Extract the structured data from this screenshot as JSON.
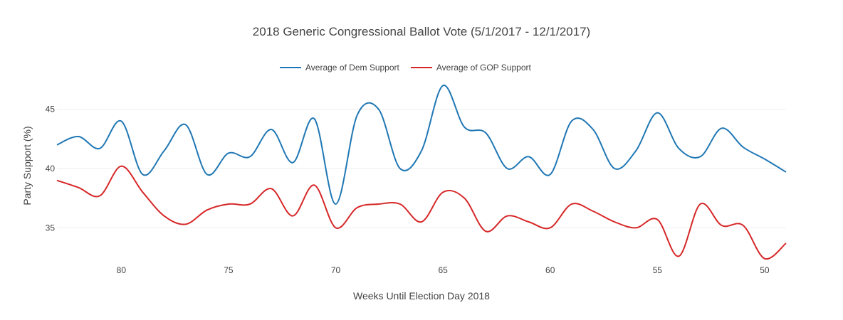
{
  "chart_data": {
    "type": "line",
    "title": "2018 Generic Congressional Ballot Vote (5/1/2017 - 12/1/2017)",
    "xlabel": "Weeks Until Election Day 2018",
    "ylabel": "Party Support (%)",
    "xlim": [
      83,
      49
    ],
    "ylim": [
      32.5,
      47.5
    ],
    "x_ticks": [
      80,
      75,
      70,
      65,
      60,
      55,
      50
    ],
    "y_ticks": [
      35,
      40,
      45
    ],
    "grid": true,
    "legend_position": "top-center",
    "x": [
      83,
      82,
      81,
      80,
      79,
      78,
      77,
      76,
      75,
      74,
      73,
      72,
      71,
      70,
      69,
      68,
      67,
      66,
      65,
      64,
      63,
      62,
      61,
      60,
      59,
      58,
      57,
      56,
      55,
      54,
      53,
      52,
      51,
      50,
      49
    ],
    "series": [
      {
        "name": "Average of Dem Support",
        "color": "#1f77b4",
        "values": [
          42,
          42.7,
          41.7,
          44,
          39.5,
          41.5,
          43.7,
          39.5,
          41.3,
          41,
          43.3,
          40.5,
          44.2,
          37,
          44.5,
          45,
          40,
          41.5,
          47,
          43.5,
          43,
          40,
          41,
          39.5,
          44,
          43.3,
          40,
          41.5,
          44.7,
          41.7,
          41,
          43.4,
          41.8,
          40.8,
          39.7
        ]
      },
      {
        "name": "Average of GOP Support",
        "color": "#d62728",
        "values": [
          39,
          38.4,
          37.7,
          40.2,
          38,
          36,
          35.3,
          36.5,
          37,
          37,
          38.3,
          36,
          38.6,
          35,
          36.7,
          37,
          37,
          35.5,
          38,
          37.5,
          34.7,
          36,
          35.5,
          35,
          37,
          36.4,
          35.5,
          35,
          35.7,
          32.6,
          37,
          35.2,
          35.2,
          32.4,
          33.7
        ]
      }
    ]
  }
}
